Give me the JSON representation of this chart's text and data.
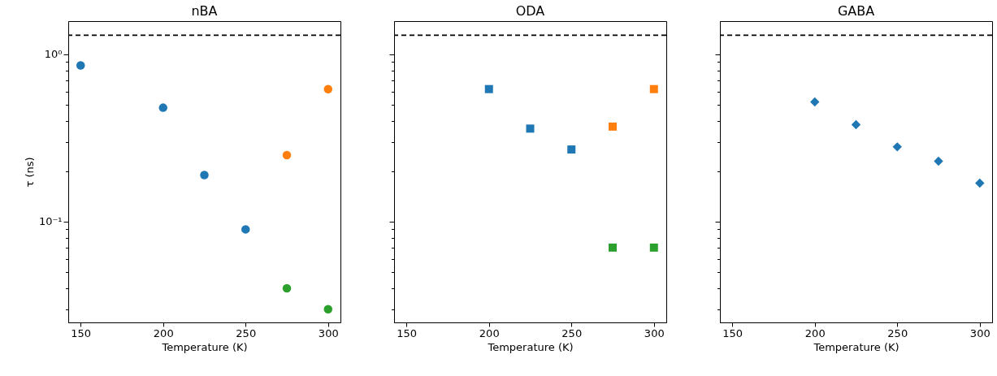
{
  "chart_data": [
    {
      "type": "scatter",
      "title": "nBA",
      "xlabel": "Temperature (K)",
      "ylabel": "τ (ns)",
      "marker": "circle",
      "log": true,
      "xlim": [
        142.5,
        307.5
      ],
      "xticks": [
        150,
        200,
        250,
        300
      ],
      "ylim": [
        0.025,
        1.58
      ],
      "yticks": [
        {
          "value": 0.03,
          "label": null
        },
        {
          "value": 0.04,
          "label": null
        },
        {
          "value": 0.05,
          "label": null
        },
        {
          "value": 0.06,
          "label": null
        },
        {
          "value": 0.07,
          "label": null
        },
        {
          "value": 0.08,
          "label": null
        },
        {
          "value": 0.09,
          "label": null
        },
        {
          "value": 0.1,
          "label": "10⁻¹"
        },
        {
          "value": 0.2,
          "label": null
        },
        {
          "value": 0.3,
          "label": null
        },
        {
          "value": 0.4,
          "label": null
        },
        {
          "value": 0.5,
          "label": null
        },
        {
          "value": 0.6,
          "label": null
        },
        {
          "value": 0.7,
          "label": null
        },
        {
          "value": 0.8,
          "label": null
        },
        {
          "value": 0.9,
          "label": null
        },
        {
          "value": 1,
          "label": "10⁰"
        }
      ],
      "ref_lines": [
        {
          "axis": "y",
          "value": 1.3,
          "color": "#000000",
          "line_style": "dashed"
        }
      ],
      "series": [
        {
          "color": "#1f77b4",
          "x": [
            150,
            200,
            225,
            250
          ],
          "values": [
            0.86,
            0.48,
            0.19,
            0.09
          ]
        },
        {
          "color": "#ff7f0e",
          "x": [
            275,
            300
          ],
          "values": [
            0.25,
            0.62
          ]
        },
        {
          "color": "#2ca02c",
          "x": [
            275,
            300
          ],
          "values": [
            0.04,
            0.03
          ]
        }
      ]
    },
    {
      "type": "scatter",
      "title": "ODA",
      "xlabel": "Temperature (K)",
      "marker": "square",
      "log": true,
      "tick_labels": "x",
      "xlim": [
        142.5,
        307.5
      ],
      "xticks": [
        150,
        200,
        250,
        300
      ],
      "ylim": [
        0.025,
        1.58
      ],
      "yticks": [
        {
          "value": 0.03,
          "label": null
        },
        {
          "value": 0.04,
          "label": null
        },
        {
          "value": 0.05,
          "label": null
        },
        {
          "value": 0.06,
          "label": null
        },
        {
          "value": 0.07,
          "label": null
        },
        {
          "value": 0.08,
          "label": null
        },
        {
          "value": 0.09,
          "label": null
        },
        {
          "value": 0.1,
          "label": null
        },
        {
          "value": 0.2,
          "label": null
        },
        {
          "value": 0.3,
          "label": null
        },
        {
          "value": 0.4,
          "label": null
        },
        {
          "value": 0.5,
          "label": null
        },
        {
          "value": 0.6,
          "label": null
        },
        {
          "value": 0.7,
          "label": null
        },
        {
          "value": 0.8,
          "label": null
        },
        {
          "value": 0.9,
          "label": null
        },
        {
          "value": 1,
          "label": null
        }
      ],
      "ref_lines": [
        {
          "axis": "y",
          "value": 1.3,
          "color": "#000000",
          "line_style": "dashed"
        }
      ],
      "series": [
        {
          "color": "#1f77b4",
          "x": [
            200,
            225,
            250
          ],
          "values": [
            0.62,
            0.36,
            0.27
          ]
        },
        {
          "color": "#ff7f0e",
          "x": [
            275,
            300
          ],
          "values": [
            0.37,
            0.62
          ]
        },
        {
          "color": "#2ca02c",
          "x": [
            275,
            300
          ],
          "values": [
            0.07,
            0.07
          ]
        }
      ]
    },
    {
      "type": "scatter",
      "title": "GABA",
      "xlabel": "Temperature (K)",
      "marker": "diamond",
      "log": true,
      "tick_labels": "x",
      "xlim": [
        142.5,
        307.5
      ],
      "xticks": [
        150,
        200,
        250,
        300
      ],
      "ylim": [
        0.025,
        1.58
      ],
      "yticks": [
        {
          "value": 0.03,
          "label": null
        },
        {
          "value": 0.04,
          "label": null
        },
        {
          "value": 0.05,
          "label": null
        },
        {
          "value": 0.06,
          "label": null
        },
        {
          "value": 0.07,
          "label": null
        },
        {
          "value": 0.08,
          "label": null
        },
        {
          "value": 0.09,
          "label": null
        },
        {
          "value": 0.1,
          "label": null
        },
        {
          "value": 0.2,
          "label": null
        },
        {
          "value": 0.3,
          "label": null
        },
        {
          "value": 0.4,
          "label": null
        },
        {
          "value": 0.5,
          "label": null
        },
        {
          "value": 0.6,
          "label": null
        },
        {
          "value": 0.7,
          "label": null
        },
        {
          "value": 0.8,
          "label": null
        },
        {
          "value": 0.9,
          "label": null
        },
        {
          "value": 1,
          "label": null
        }
      ],
      "ref_lines": [
        {
          "axis": "y",
          "value": 1.3,
          "color": "#000000",
          "line_style": "dashed"
        }
      ],
      "series": [
        {
          "color": "#1f77b4",
          "x": [
            200,
            225,
            250,
            275,
            300
          ],
          "values": [
            0.52,
            0.38,
            0.28,
            0.23,
            0.17
          ]
        }
      ]
    }
  ]
}
